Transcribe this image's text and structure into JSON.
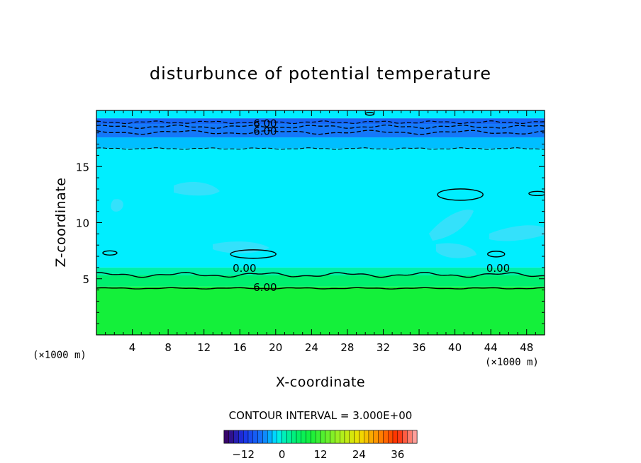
{
  "chart_data": {
    "type": "heatmap",
    "title": "disturbunce of potential temperature",
    "xlabel": "X-coordinate",
    "ylabel": "Z-coordinate",
    "x_unit": "(×1000 m)",
    "z_unit": "(×1000 m)",
    "xlim": [
      0,
      50
    ],
    "ylim": [
      0,
      20
    ],
    "x_ticks": [
      4,
      8,
      12,
      16,
      20,
      24,
      28,
      32,
      36,
      40,
      44,
      48
    ],
    "y_ticks": [
      5,
      10,
      15
    ],
    "contour_interval_text": "CONTOUR INTERVAL = 3.000E+00",
    "contour_labels": [
      {
        "text": "6.00",
        "x": 17.5,
        "z": 18.7
      },
      {
        "text": "6.00",
        "x": 17.5,
        "z": 18.0
      },
      {
        "text": "0.00",
        "x": 15.2,
        "z": 5.8
      },
      {
        "text": "0.00",
        "x": 43.5,
        "z": 5.8
      },
      {
        "text": "6.00",
        "x": 17.5,
        "z": 4.1
      }
    ],
    "layers": [
      {
        "z_from": 0.0,
        "z_to": 4.3,
        "value": 9
      },
      {
        "z_from": 4.3,
        "z_to": 5.3,
        "value": 4.5
      },
      {
        "z_from": 5.3,
        "z_to": 6.0,
        "value": 1.5
      },
      {
        "z_from": 6.0,
        "z_to": 16.6,
        "value": -1.5
      },
      {
        "z_from": 16.6,
        "z_to": 17.6,
        "value": -3
      },
      {
        "z_from": 17.6,
        "z_to": 18.8,
        "value": -6
      },
      {
        "z_from": 18.8,
        "z_to": 19.3,
        "value": -7.5
      },
      {
        "z_from": 19.3,
        "z_to": 20.0,
        "value": -1.5
      }
    ],
    "colorbar": {
      "range": [
        -18,
        42
      ],
      "ticks": [
        -12,
        0,
        12,
        24,
        36
      ],
      "tick_labels": [
        "−12",
        "0",
        "12",
        "24",
        "36"
      ]
    }
  }
}
